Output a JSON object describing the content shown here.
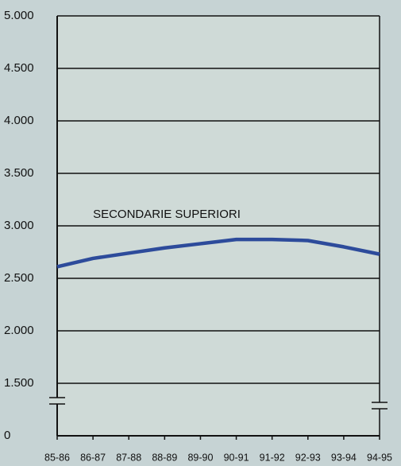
{
  "chart_data": {
    "type": "line",
    "annotation": "SECONDARIE SUPERIORI",
    "categories": [
      "85-86",
      "86-87",
      "87-88",
      "88-89",
      "89-90",
      "90-91",
      "91-92",
      "92-93",
      "93-94",
      "94-95"
    ],
    "series": [
      {
        "name": "SECONDARIE SUPERIORI",
        "color": "#2d4b9b",
        "values": [
          2610,
          2690,
          2740,
          2790,
          2830,
          2870,
          2870,
          2860,
          2800,
          2730
        ]
      }
    ],
    "ylim": [
      0,
      5000
    ],
    "axis_break": 1500,
    "yticks": [
      {
        "value": 0,
        "label": "0"
      },
      {
        "value": 1500,
        "label": "1.500"
      },
      {
        "value": 2000,
        "label": "2.000"
      },
      {
        "value": 2500,
        "label": "2.500"
      },
      {
        "value": 3000,
        "label": "3.000"
      },
      {
        "value": 3500,
        "label": "3.500"
      },
      {
        "value": 4000,
        "label": "4.000"
      },
      {
        "value": 4500,
        "label": "4.500"
      },
      {
        "value": 5000,
        "label": "5.000"
      }
    ],
    "grid": true
  }
}
